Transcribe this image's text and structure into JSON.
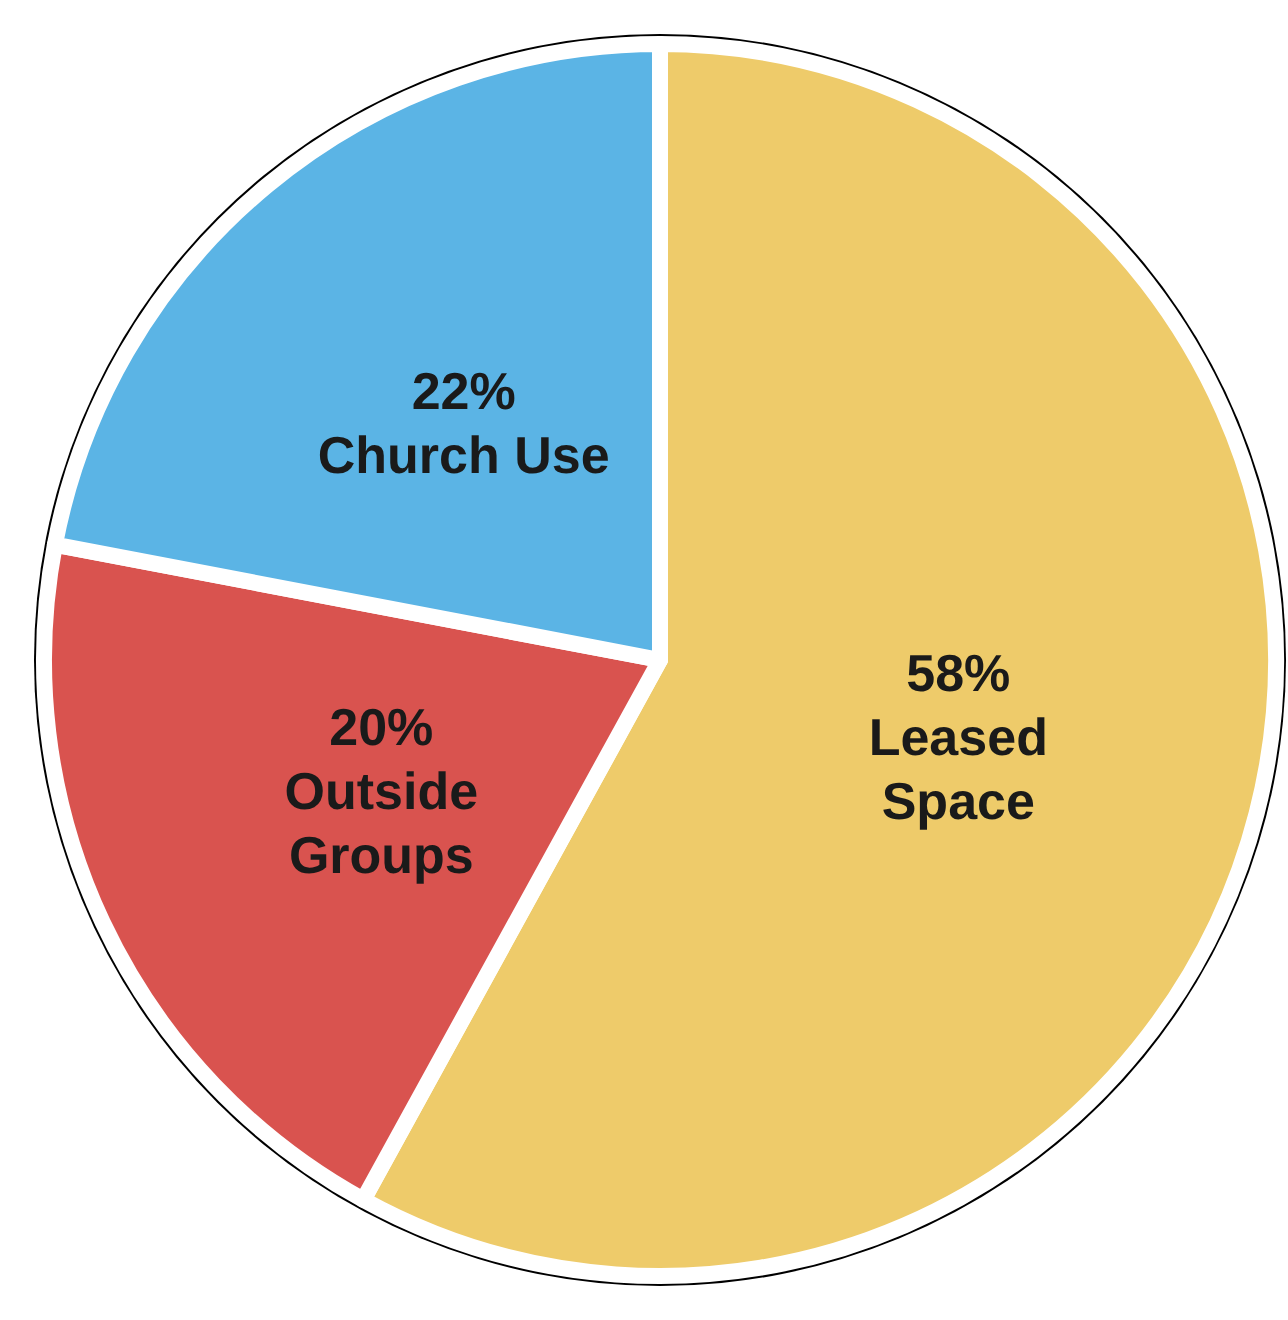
{
  "chart_data": {
    "type": "pie",
    "categories": [
      "Leased Space",
      "Outside Groups",
      "Church Use"
    ],
    "values": [
      58,
      20,
      22
    ],
    "colors": [
      "#eecb6a",
      "#d9534f",
      "#5bb4e5"
    ],
    "value_labels": [
      "58%",
      "20%",
      "22%"
    ]
  }
}
